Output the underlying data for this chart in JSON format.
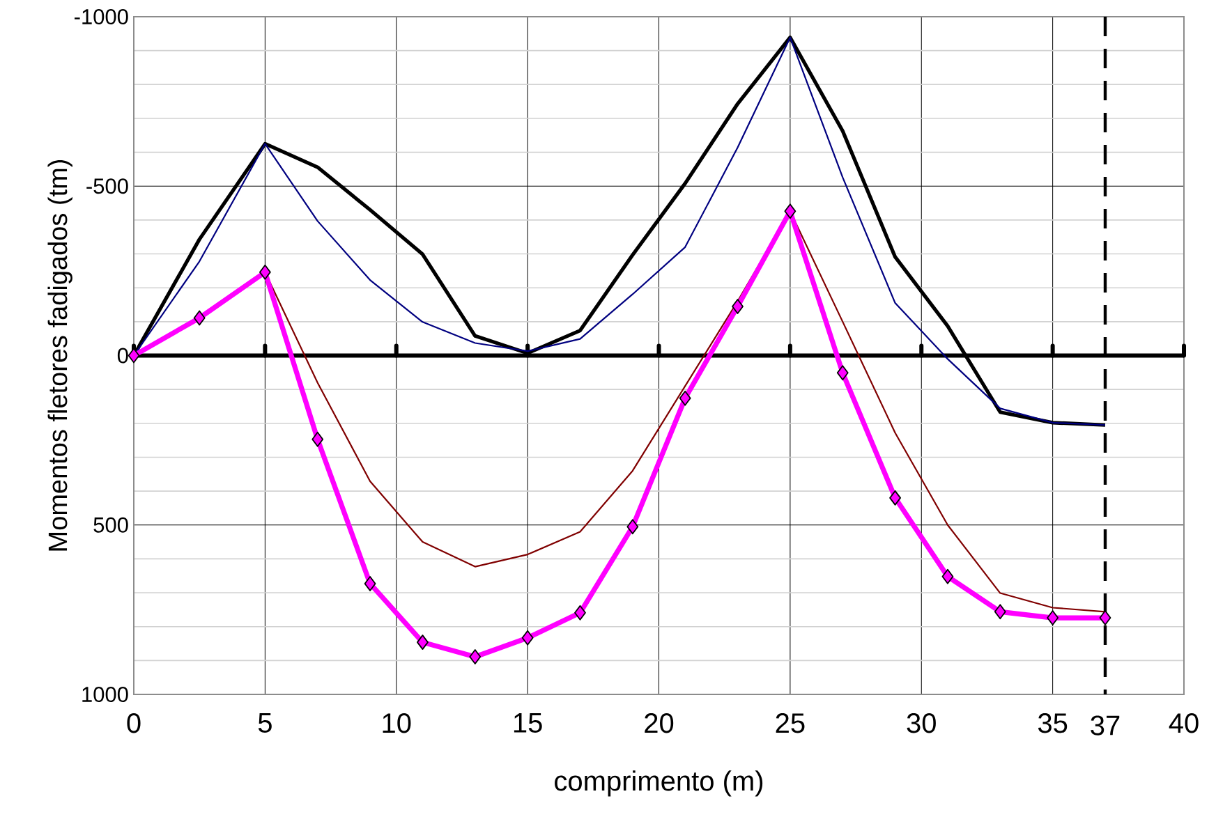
{
  "chart_data": {
    "type": "line",
    "xlabel": "comprimento (m)",
    "ylabel": "Momentos fletores fadigados (tm)",
    "x": [
      0,
      2.5,
      5,
      7,
      9,
      11,
      13,
      15,
      17,
      19,
      21,
      23,
      25,
      27,
      29,
      31,
      33,
      35,
      37
    ],
    "series": [
      {
        "color": "#000000",
        "values": [
          0,
          -343,
          -625,
          -556,
          -430,
          -299,
          -58,
          -7,
          -74,
          -297,
          -508,
          -743,
          -939,
          -663,
          -291,
          -87,
          167,
          198,
          205
        ]
      },
      {
        "color": "#000080",
        "values": [
          0,
          -278,
          -625,
          -397,
          -223,
          -99,
          -37,
          -13,
          -49,
          -181,
          -320,
          -614,
          -939,
          -526,
          -155,
          10,
          156,
          198,
          205
        ]
      },
      {
        "color": "#800000",
        "values": [
          0,
          -111,
          -246,
          80,
          371,
          550,
          623,
          587,
          520,
          340,
          90,
          -160,
          -426,
          -100,
          228,
          500,
          701,
          744,
          756
        ]
      },
      {
        "color": "#ff00ff",
        "marker": "diamond",
        "values": [
          0,
          -111,
          -246,
          247,
          673,
          846,
          889,
          833,
          759,
          505,
          126,
          -145,
          -426,
          51,
          420,
          652,
          756,
          774,
          774
        ]
      }
    ],
    "xlim": [
      0,
      40
    ],
    "ylim": [
      1000,
      -1000
    ],
    "xticks": [
      0,
      5,
      10,
      15,
      20,
      25,
      30,
      35,
      40
    ],
    "yticks": [
      -1000,
      -500,
      0,
      500,
      1000
    ],
    "ref_lines": [
      {
        "axis": "y",
        "value": 0,
        "color": "#000000"
      },
      {
        "axis": "x",
        "value": 37,
        "label": "37",
        "color": "#000000",
        "line_style": "dashed"
      }
    ],
    "grid": true
  }
}
